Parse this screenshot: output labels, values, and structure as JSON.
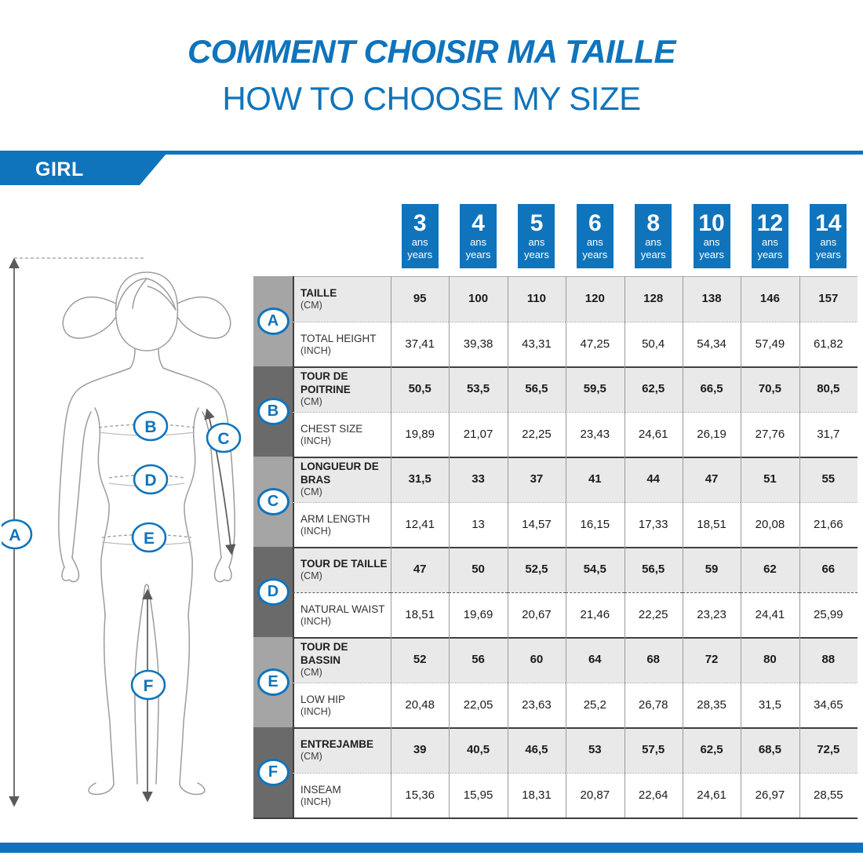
{
  "page": {
    "title_fr": "COMMENT CHOISIR MA TAILLE",
    "title_en": "HOW TO CHOOSE MY SIZE",
    "banner_label": "GIRL"
  },
  "colors": {
    "accent_blue": "#0f74bc",
    "row_gray": "#e9e9e9",
    "strip_light": "#a5a5a5",
    "strip_dark": "#6a6a6a",
    "separator_dark": "#3f3f3f"
  },
  "figure": {
    "markers": [
      "A",
      "B",
      "C",
      "D",
      "E",
      "F"
    ]
  },
  "chart_data": {
    "type": "table",
    "title": "COMMENT CHOISIR MA TAILLE / HOW TO CHOOSE MY SIZE — GIRL",
    "column_headers": {
      "numbers": [
        "3",
        "4",
        "5",
        "6",
        "8",
        "10",
        "12",
        "14"
      ],
      "unit_fr": "ans",
      "unit_en": "years"
    },
    "rows": [
      {
        "letter": "A",
        "label_fr": "TAILLE",
        "unit_fr": "(CM)",
        "label_en": "TOTAL HEIGHT",
        "unit_en": "(INCH)",
        "divider": "dotted",
        "cm": [
          "95",
          "100",
          "110",
          "120",
          "128",
          "138",
          "146",
          "157"
        ],
        "inch": [
          "37,41",
          "39,38",
          "43,31",
          "47,25",
          "50,4",
          "54,34",
          "57,49",
          "61,82"
        ]
      },
      {
        "letter": "B",
        "label_fr": "TOUR DE POITRINE",
        "unit_fr": "(CM)",
        "label_en": "CHEST SIZE",
        "unit_en": "(INCH)",
        "divider": "dotted",
        "cm": [
          "50,5",
          "53,5",
          "56,5",
          "59,5",
          "62,5",
          "66,5",
          "70,5",
          "80,5"
        ],
        "inch": [
          "19,89",
          "21,07",
          "22,25",
          "23,43",
          "24,61",
          "26,19",
          "27,76",
          "31,7"
        ]
      },
      {
        "letter": "C",
        "label_fr": "LONGUEUR DE BRAS",
        "unit_fr": "(CM)",
        "label_en": "ARM LENGTH",
        "unit_en": "(INCH)",
        "divider": "dotted",
        "cm": [
          "31,5",
          "33",
          "37",
          "41",
          "44",
          "47",
          "51",
          "55"
        ],
        "inch": [
          "12,41",
          "13",
          "14,57",
          "16,15",
          "17,33",
          "18,51",
          "20,08",
          "21,66"
        ]
      },
      {
        "letter": "D",
        "label_fr": "TOUR DE TAILLE",
        "unit_fr": "(CM)",
        "label_en": "NATURAL WAIST",
        "unit_en": "(INCH)",
        "divider": "dashed",
        "cm": [
          "47",
          "50",
          "52,5",
          "54,5",
          "56,5",
          "59",
          "62",
          "66"
        ],
        "inch": [
          "18,51",
          "19,69",
          "20,67",
          "21,46",
          "22,25",
          "23,23",
          "24,41",
          "25,99"
        ]
      },
      {
        "letter": "E",
        "label_fr": "TOUR DE BASSIN",
        "unit_fr": "(CM)",
        "label_en": "LOW HIP",
        "unit_en": "(INCH)",
        "divider": "dotted",
        "cm": [
          "52",
          "56",
          "60",
          "64",
          "68",
          "72",
          "80",
          "88"
        ],
        "inch": [
          "20,48",
          "22,05",
          "23,63",
          "25,2",
          "26,78",
          "28,35",
          "31,5",
          "34,65"
        ]
      },
      {
        "letter": "F",
        "label_fr": "ENTREJAMBE",
        "unit_fr": "(CM)",
        "label_en": "INSEAM",
        "unit_en": "(INCH)",
        "divider": "dotted",
        "cm": [
          "39",
          "40,5",
          "46,5",
          "53",
          "57,5",
          "62,5",
          "68,5",
          "72,5"
        ],
        "inch": [
          "15,36",
          "15,95",
          "18,31",
          "20,87",
          "22,64",
          "24,61",
          "26,97",
          "28,55"
        ]
      }
    ]
  }
}
